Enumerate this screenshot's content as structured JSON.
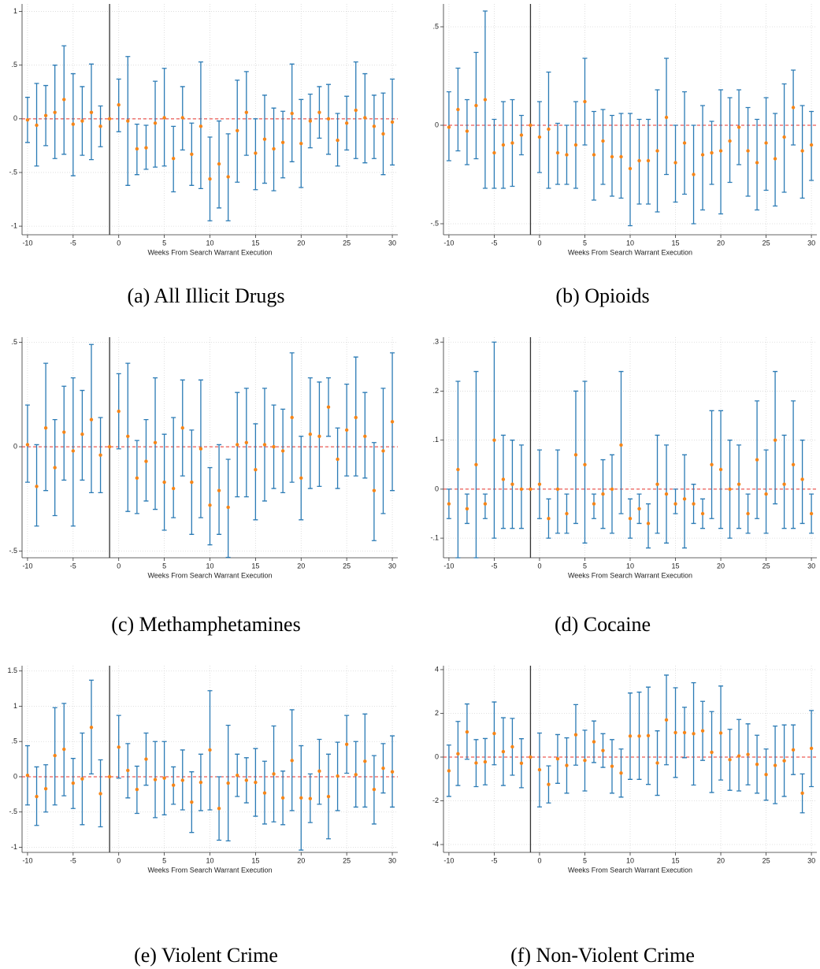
{
  "chart_data": [
    {
      "type": "errorbar",
      "caption": "(a) All Illicit Drugs",
      "xlabel": "Weeks From Search Warrant Execution",
      "x": [
        -10,
        -9,
        -8,
        -7,
        -6,
        -5,
        -4,
        -3,
        -2,
        -1,
        0,
        1,
        2,
        3,
        4,
        5,
        6,
        7,
        8,
        9,
        10,
        11,
        12,
        13,
        14,
        15,
        16,
        17,
        18,
        19,
        20,
        21,
        22,
        23,
        24,
        25,
        26,
        27,
        28,
        29,
        30
      ],
      "values": [
        -0.01,
        -0.06,
        0.03,
        0.06,
        0.18,
        -0.05,
        -0.02,
        0.06,
        -0.07,
        0,
        0.13,
        -0.02,
        -0.28,
        -0.27,
        -0.04,
        0.01,
        -0.37,
        0.01,
        -0.33,
        -0.07,
        -0.56,
        -0.42,
        -0.54,
        -0.11,
        0.06,
        -0.32,
        -0.19,
        -0.28,
        -0.22,
        0.05,
        -0.23,
        -0.02,
        0.06,
        0,
        -0.2,
        -0.04,
        0.08,
        0.01,
        -0.07,
        -0.14,
        -0.03
      ],
      "lower": [
        -0.22,
        -0.44,
        -0.25,
        -0.37,
        -0.33,
        -0.53,
        -0.34,
        -0.38,
        -0.26,
        null,
        -0.12,
        -0.62,
        -0.52,
        -0.47,
        -0.45,
        -0.44,
        -0.68,
        -0.29,
        -0.62,
        -0.65,
        -0.95,
        -0.83,
        -0.95,
        -0.59,
        -0.34,
        -0.66,
        -0.6,
        -0.67,
        -0.55,
        -0.4,
        -0.64,
        -0.27,
        -0.18,
        -0.33,
        -0.44,
        -0.29,
        -0.37,
        -0.41,
        -0.37,
        -0.52,
        -0.43
      ],
      "upper": [
        0.2,
        0.33,
        0.31,
        0.5,
        0.68,
        0.42,
        0.3,
        0.51,
        0.12,
        null,
        0.37,
        0.58,
        -0.05,
        -0.06,
        0.35,
        0.47,
        -0.07,
        0.3,
        -0.04,
        0.53,
        -0.17,
        -0.02,
        -0.14,
        0.36,
        0.44,
        0,
        0.22,
        0.1,
        0.07,
        0.51,
        0.18,
        0.23,
        0.3,
        0.32,
        0.05,
        0.21,
        0.53,
        0.42,
        0.22,
        0.24,
        0.37
      ],
      "xlim": [
        -10.6,
        30.6
      ],
      "ylim": [
        -1.08,
        1.07
      ],
      "xticks": [
        -10,
        -5,
        0,
        5,
        10,
        15,
        20,
        25,
        30
      ],
      "yticks": [
        -1,
        {
          "value": -0.5,
          "label": "-.5"
        },
        0,
        {
          "value": 0.5,
          "label": ".5"
        },
        1
      ],
      "vline": -1,
      "hline": 0,
      "grid": true,
      "bar_color": "#2b7bb5",
      "point_color": "#f58518"
    },
    {
      "type": "errorbar",
      "caption": "(b) Opioids",
      "xlabel": "Weeks From Search Warrant Execution",
      "x": [
        -10,
        -9,
        -8,
        -7,
        -6,
        -5,
        -4,
        -3,
        -2,
        -1,
        0,
        1,
        2,
        3,
        4,
        5,
        6,
        7,
        8,
        9,
        10,
        11,
        12,
        13,
        14,
        15,
        16,
        17,
        18,
        19,
        20,
        21,
        22,
        23,
        24,
        25,
        26,
        27,
        28,
        29,
        30
      ],
      "values": [
        -0.01,
        0.08,
        -0.03,
        0.1,
        0.13,
        -0.14,
        -0.1,
        -0.09,
        -0.05,
        0,
        -0.06,
        -0.02,
        -0.14,
        -0.15,
        -0.1,
        0.12,
        -0.15,
        -0.08,
        -0.16,
        -0.16,
        -0.22,
        -0.18,
        -0.18,
        -0.13,
        0.04,
        -0.19,
        -0.09,
        -0.25,
        -0.15,
        -0.14,
        -0.13,
        -0.08,
        -0.01,
        -0.13,
        -0.19,
        -0.09,
        -0.17,
        -0.06,
        0.09,
        -0.13,
        -0.1
      ],
      "lower": [
        -0.18,
        -0.13,
        -0.2,
        -0.17,
        -0.32,
        -0.32,
        -0.32,
        -0.31,
        -0.15,
        null,
        -0.24,
        -0.32,
        -0.3,
        -0.3,
        -0.32,
        -0.1,
        -0.38,
        -0.3,
        -0.36,
        -0.37,
        -0.51,
        -0.4,
        -0.4,
        -0.44,
        -0.25,
        -0.39,
        -0.35,
        -0.5,
        -0.43,
        -0.3,
        -0.45,
        -0.29,
        -0.2,
        -0.36,
        -0.43,
        -0.33,
        -0.41,
        -0.34,
        -0.1,
        -0.37,
        -0.28
      ],
      "upper": [
        0.17,
        0.29,
        0.13,
        0.37,
        0.58,
        0.03,
        0.12,
        0.13,
        0.05,
        null,
        0.12,
        0.27,
        0.01,
        0,
        0.12,
        0.34,
        0.07,
        0.08,
        0.05,
        0.06,
        0.06,
        0.03,
        0.03,
        0.18,
        0.34,
        0,
        0.17,
        0,
        0.1,
        0.02,
        0.18,
        0.14,
        0.18,
        0.09,
        0.03,
        0.14,
        0.06,
        0.21,
        0.28,
        0.1,
        0.07
      ],
      "xlim": [
        -10.6,
        30.6
      ],
      "ylim": [
        -0.556,
        0.616
      ],
      "xticks": [
        -10,
        -5,
        0,
        5,
        10,
        15,
        20,
        25,
        30
      ],
      "yticks": [
        {
          "value": -0.5,
          "label": "-.5"
        },
        0,
        {
          "value": 0.5,
          "label": ".5"
        }
      ],
      "vline": -1,
      "hline": 0,
      "grid": true,
      "bar_color": "#2b7bb5",
      "point_color": "#f58518"
    },
    {
      "type": "errorbar",
      "caption": "(c) Methamphetamines",
      "xlabel": "Weeks From Search Warrant Execution",
      "x": [
        -10,
        -9,
        -8,
        -7,
        -6,
        -5,
        -4,
        -3,
        -2,
        -1,
        0,
        1,
        2,
        3,
        4,
        5,
        6,
        7,
        8,
        9,
        10,
        11,
        12,
        13,
        14,
        15,
        16,
        17,
        18,
        19,
        20,
        21,
        22,
        23,
        24,
        25,
        26,
        27,
        28,
        29,
        30
      ],
      "values": [
        0.01,
        -0.19,
        0.09,
        -0.1,
        0.07,
        -0.02,
        0.06,
        0.13,
        -0.04,
        0,
        0.17,
        0.05,
        -0.15,
        -0.07,
        0.02,
        -0.17,
        -0.2,
        0.09,
        -0.17,
        -0.01,
        -0.28,
        -0.21,
        -0.29,
        0.01,
        0.02,
        -0.11,
        0.01,
        0,
        -0.02,
        0.14,
        -0.15,
        0.06,
        0.05,
        0.19,
        -0.06,
        0.08,
        0.14,
        0.05,
        -0.21,
        -0.02,
        0.12
      ],
      "lower": [
        -0.17,
        -0.38,
        -0.21,
        -0.33,
        -0.16,
        -0.38,
        -0.16,
        -0.22,
        -0.22,
        null,
        -0.01,
        -0.31,
        -0.32,
        -0.26,
        -0.3,
        -0.4,
        -0.34,
        -0.14,
        -0.42,
        -0.34,
        -0.47,
        -0.42,
        -0.53,
        -0.24,
        -0.24,
        -0.35,
        -0.26,
        -0.2,
        -0.22,
        -0.17,
        -0.35,
        -0.2,
        -0.19,
        0.05,
        -0.2,
        -0.14,
        -0.14,
        -0.15,
        -0.45,
        -0.32,
        -0.21
      ],
      "upper": [
        0.2,
        0.01,
        0.4,
        0.13,
        0.29,
        0.33,
        0.27,
        0.49,
        0.14,
        null,
        0.35,
        0.4,
        0.03,
        0.13,
        0.33,
        0.06,
        0.14,
        0.32,
        0.08,
        0.32,
        -0.1,
        0.01,
        -0.06,
        0.26,
        0.28,
        0.11,
        0.28,
        0.2,
        0.18,
        0.45,
        0.05,
        0.33,
        0.31,
        0.33,
        0.09,
        0.3,
        0.43,
        0.26,
        0.02,
        0.28,
        0.45
      ],
      "xlim": [
        -10.6,
        30.6
      ],
      "ylim": [
        -0.532,
        0.525
      ],
      "xticks": [
        -10,
        -5,
        0,
        5,
        10,
        15,
        20,
        25,
        30
      ],
      "yticks": [
        {
          "value": -0.5,
          "label": "-.5"
        },
        0,
        {
          "value": 0.5,
          "label": ".5"
        }
      ],
      "vline": -1,
      "hline": 0,
      "grid": true,
      "bar_color": "#2b7bb5",
      "point_color": "#f58518"
    },
    {
      "type": "errorbar",
      "caption": "(d) Cocaine",
      "xlabel": "Weeks From Search Warrant Execution",
      "x": [
        -10,
        -9,
        -8,
        -7,
        -6,
        -5,
        -4,
        -3,
        -2,
        -1,
        0,
        1,
        2,
        3,
        4,
        5,
        6,
        7,
        8,
        9,
        10,
        11,
        12,
        13,
        14,
        15,
        16,
        17,
        18,
        19,
        20,
        21,
        22,
        23,
        24,
        25,
        26,
        27,
        28,
        29,
        30
      ],
      "values": [
        -0.03,
        0.04,
        -0.04,
        0.05,
        -0.03,
        0.1,
        0.02,
        0.01,
        0,
        0,
        0.01,
        -0.06,
        0,
        -0.05,
        0.07,
        0.05,
        -0.03,
        -0.01,
        0,
        0.09,
        -0.06,
        -0.04,
        -0.07,
        0.01,
        -0.01,
        -0.03,
        -0.02,
        -0.03,
        -0.05,
        0.05,
        0.04,
        0,
        0.01,
        -0.05,
        0.06,
        -0.01,
        0.1,
        0.01,
        0.05,
        0.02,
        -0.05
      ],
      "lower": [
        -0.06,
        -0.14,
        -0.07,
        -0.14,
        -0.06,
        -0.1,
        -0.08,
        -0.08,
        -0.08,
        null,
        -0.06,
        -0.1,
        -0.09,
        -0.09,
        -0.07,
        -0.11,
        -0.06,
        -0.08,
        -0.09,
        -0.05,
        -0.1,
        -0.07,
        -0.12,
        -0.09,
        -0.11,
        -0.05,
        -0.12,
        -0.07,
        -0.08,
        -0.06,
        -0.08,
        -0.1,
        -0.08,
        -0.09,
        -0.06,
        -0.09,
        -0.03,
        -0.08,
        -0.08,
        -0.07,
        -0.09
      ],
      "upper": [
        0,
        0.22,
        -0.01,
        0.24,
        -0.01,
        0.3,
        0.11,
        0.1,
        0.09,
        null,
        0.08,
        -0.02,
        0.08,
        -0.01,
        0.2,
        0.22,
        -0.01,
        0.06,
        0.07,
        0.24,
        -0.02,
        -0.01,
        -0.03,
        0.11,
        0.09,
        0,
        0.07,
        0.01,
        -0.02,
        0.16,
        0.16,
        0.1,
        0.09,
        -0.01,
        0.18,
        0.08,
        0.24,
        0.11,
        0.18,
        0.1,
        -0.01
      ],
      "xlim": [
        -10.6,
        30.6
      ],
      "ylim": [
        -0.14,
        0.31
      ],
      "xticks": [
        -10,
        -5,
        0,
        5,
        10,
        15,
        20,
        25,
        30
      ],
      "yticks": [
        {
          "value": -0.1,
          "label": "-.1"
        },
        0,
        {
          "value": 0.1,
          "label": ".1"
        },
        {
          "value": 0.2,
          "label": ".2"
        },
        {
          "value": 0.3,
          "label": ".3"
        }
      ],
      "vline": -1,
      "hline": 0,
      "grid": true,
      "bar_color": "#2b7bb5",
      "point_color": "#f58518"
    },
    {
      "type": "errorbar",
      "caption": "(e) Violent Crime",
      "xlabel": "Weeks From Search Warrant Execution",
      "x": [
        -10,
        -9,
        -8,
        -7,
        -6,
        -5,
        -4,
        -3,
        -2,
        -1,
        0,
        1,
        2,
        3,
        4,
        5,
        6,
        7,
        8,
        9,
        10,
        11,
        12,
        13,
        14,
        15,
        16,
        17,
        18,
        19,
        20,
        21,
        22,
        23,
        24,
        25,
        26,
        27,
        28,
        29,
        30
      ],
      "values": [
        0.02,
        -0.28,
        -0.17,
        0.3,
        0.39,
        -0.09,
        -0.03,
        0.7,
        -0.24,
        0,
        0.42,
        0.09,
        -0.18,
        0.25,
        -0.04,
        -0.02,
        -0.12,
        -0.05,
        -0.36,
        -0.08,
        0.38,
        -0.45,
        -0.09,
        0.02,
        -0.05,
        -0.08,
        -0.23,
        0.04,
        -0.3,
        0.23,
        -0.3,
        -0.31,
        0.08,
        -0.28,
        0.01,
        0.46,
        0.03,
        0.22,
        -0.18,
        0.12,
        0.07
      ],
      "lower": [
        -0.4,
        -0.69,
        -0.5,
        -0.4,
        -0.27,
        -0.45,
        -0.68,
        0.04,
        -0.71,
        null,
        -0.02,
        -0.3,
        -0.52,
        -0.12,
        -0.58,
        -0.54,
        -0.39,
        -0.47,
        -0.79,
        -0.48,
        -0.47,
        -0.9,
        -0.91,
        -0.28,
        -0.37,
        -0.56,
        -0.67,
        -0.64,
        -0.68,
        -0.48,
        -1.04,
        -0.65,
        -0.39,
        -0.88,
        -0.48,
        0.05,
        -0.43,
        -0.43,
        -0.67,
        -0.23,
        -0.43
      ],
      "upper": [
        0.44,
        0.14,
        0.17,
        0.98,
        1.04,
        0.26,
        0.62,
        1.37,
        0.24,
        null,
        0.87,
        0.47,
        0.15,
        0.62,
        0.5,
        0.5,
        0.14,
        0.38,
        0.07,
        0.32,
        1.22,
        0,
        0.73,
        0.32,
        0.27,
        0.4,
        0.22,
        0.72,
        0.08,
        0.95,
        0.44,
        0.04,
        0.53,
        0.32,
        0.49,
        0.87,
        0.5,
        0.89,
        0.3,
        0.47,
        0.58
      ],
      "xlim": [
        -10.6,
        30.6
      ],
      "ylim": [
        -1.073,
        1.575
      ],
      "xticks": [
        -10,
        -5,
        0,
        5,
        10,
        15,
        20,
        25,
        30
      ],
      "yticks": [
        -1,
        {
          "value": -0.5,
          "label": "-.5"
        },
        0,
        {
          "value": 0.5,
          "label": ".5"
        },
        1,
        1.5
      ],
      "vline": -1,
      "hline": 0,
      "grid": true,
      "bar_color": "#2b7bb5",
      "point_color": "#f58518"
    },
    {
      "type": "errorbar",
      "caption": "(f) Non-Violent Crime",
      "xlabel": "Weeks From Search Warrant Execution",
      "x": [
        -10,
        -9,
        -8,
        -7,
        -6,
        -5,
        -4,
        -3,
        -2,
        -1,
        0,
        1,
        2,
        3,
        4,
        5,
        6,
        7,
        8,
        9,
        10,
        11,
        12,
        13,
        14,
        15,
        16,
        17,
        18,
        19,
        20,
        21,
        22,
        23,
        24,
        25,
        26,
        27,
        28,
        29,
        30
      ],
      "values": [
        -0.63,
        0.15,
        1.15,
        -0.27,
        -0.22,
        1.08,
        0.25,
        0.47,
        -0.28,
        0,
        -0.58,
        -1.25,
        -0.08,
        -0.38,
        1.02,
        -0.15,
        0.7,
        0.3,
        -0.42,
        -0.73,
        0.96,
        0.96,
        0.98,
        -0.27,
        1.7,
        1.12,
        1.12,
        1.07,
        1.2,
        0.22,
        1.1,
        -0.12,
        0.05,
        0.12,
        -0.33,
        -0.8,
        -0.38,
        -0.17,
        0.33,
        -1.65,
        0.4
      ],
      "lower": [
        -1.8,
        -1.3,
        -0.1,
        -1.35,
        -1.27,
        -0.35,
        -1.3,
        -0.83,
        -1.4,
        null,
        -2.28,
        -2.1,
        -1.2,
        -1.65,
        -0.37,
        -1.55,
        -0.25,
        -0.47,
        -1.65,
        -1.83,
        -1.02,
        -1.02,
        -1.25,
        -1.75,
        -0.35,
        -0.93,
        -0.03,
        -1.28,
        -0.15,
        -1.62,
        -1.05,
        -1.52,
        -1.55,
        -1.27,
        -1.65,
        -1.97,
        -2.13,
        -1.8,
        -0.8,
        -2.55,
        -1.35
      ],
      "upper": [
        0.55,
        1.63,
        2.43,
        0.8,
        0.85,
        2.52,
        1.8,
        1.77,
        0.84,
        null,
        1.1,
        -0.4,
        1.03,
        0.88,
        2.4,
        1.23,
        1.65,
        1.07,
        0.8,
        0.37,
        2.93,
        2.97,
        3.2,
        1.2,
        3.75,
        3.17,
        2.28,
        3.4,
        2.55,
        2.08,
        3.25,
        1.27,
        1.72,
        1.52,
        1,
        0.37,
        1.42,
        1.47,
        1.47,
        -0.77,
        2.13
      ],
      "xlim": [
        -10.6,
        30.6
      ],
      "ylim": [
        -4.36,
        4.18
      ],
      "xticks": [
        -10,
        -5,
        0,
        5,
        10,
        15,
        20,
        25,
        30
      ],
      "yticks": [
        -4,
        -2,
        0,
        2,
        4
      ],
      "vline": -1,
      "hline": 0,
      "grid": true,
      "bar_color": "#2b7bb5",
      "point_color": "#f58518"
    }
  ]
}
